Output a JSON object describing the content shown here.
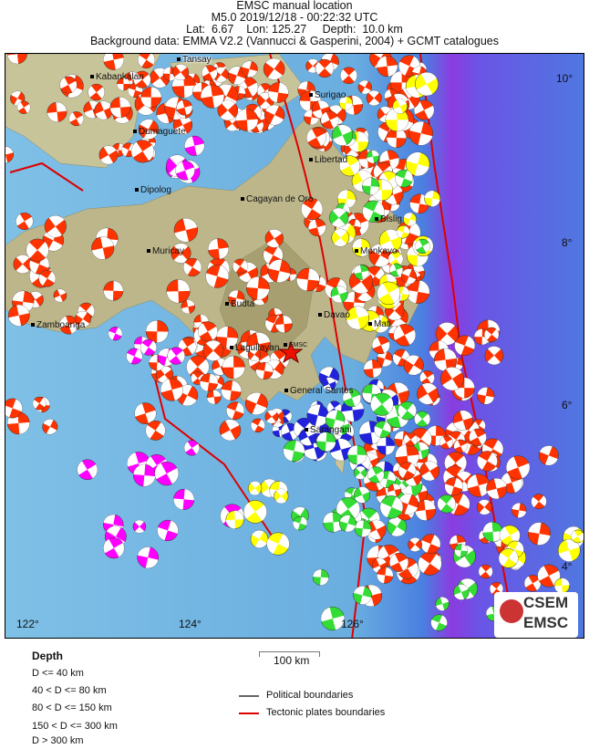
{
  "header": {
    "title": "EMSC manual location",
    "line2": "M5.0  2019/12/18 - 00:22:32 UTC",
    "line3": "Lat:  6.67    Lon: 125.27     Depth:  10.0 km",
    "line4": "Background data: EMMA V2.2 (Vannucci & Gasperini, 2004) + GCMT catalogues"
  },
  "cities": [
    "Tansay",
    "Kabankalan",
    "Surigao",
    "Dumaguete",
    "Libertad",
    "Dipolog",
    "Cagayan de Oro",
    "Bislig",
    "Muricay",
    "Monkayo",
    "Budta",
    "Davao",
    "Mati",
    "Zamboanga",
    "Lagullayan",
    "General Santos",
    "Sarangani"
  ],
  "epicenter_label": "EMSC",
  "lon_ticks": [
    "122°",
    "124°",
    "126°"
  ],
  "lat_ticks": [
    "10°",
    "8°",
    "6°",
    "4°"
  ],
  "legend": {
    "title": "Depth",
    "depth_classes": [
      "D <= 40 km",
      "40 < D <= 80 km",
      "80 < D <= 150 km",
      "150 < D <= 300 km",
      "D > 300 km"
    ],
    "scale": "100 km",
    "political": "Political boundaries",
    "tectonic": "Tectonic plates boundaries"
  },
  "logo": {
    "top": "CSEM",
    "bottom": "EMSC"
  },
  "colors": {
    "shallow": "#ff3300",
    "d40_80": "#ffff00",
    "d80_150": "#33dd33",
    "d150_300": "#2222dd",
    "deep": "#ff00ff",
    "tectonic": "#dd0000",
    "political": "#666666"
  }
}
